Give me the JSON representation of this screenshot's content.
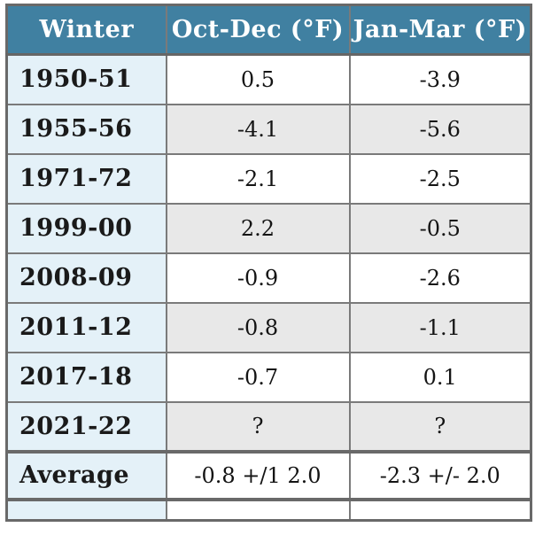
{
  "chart_data": {
    "type": "table",
    "columns": [
      "Winter",
      "Oct-Dec (°F)",
      "Jan-Mar (°F)"
    ],
    "rows": [
      [
        "1950-51",
        "0.5",
        "-3.9"
      ],
      [
        "1955-56",
        "-4.1",
        "-5.6"
      ],
      [
        "1971-72",
        "-2.1",
        "-2.5"
      ],
      [
        "1999-00",
        "2.2",
        "-0.5"
      ],
      [
        "2008-09",
        "-0.9",
        "-2.6"
      ],
      [
        "2011-12",
        "-0.8",
        "-1.1"
      ],
      [
        "2017-18",
        "-0.7",
        "0.1"
      ],
      [
        "2021-22",
        "?",
        "?"
      ],
      [
        "Average",
        "-0.8 +/1 2.0",
        "-2.3 +/- 2.0"
      ]
    ],
    "categories": [
      "1950-51",
      "1955-56",
      "1971-72",
      "1999-00",
      "2008-09",
      "2011-12",
      "2017-18",
      "2021-22"
    ],
    "series": [
      {
        "name": "Oct-Dec (°F)",
        "values": [
          0.5,
          -4.1,
          -2.1,
          2.2,
          -0.9,
          -0.8,
          -0.7,
          null
        ]
      },
      {
        "name": "Jan-Mar (°F)",
        "values": [
          -3.9,
          -5.6,
          -2.5,
          -0.5,
          -2.6,
          -1.1,
          0.1,
          null
        ]
      }
    ],
    "summary_row": {
      "label": "Average",
      "oct_dec": "-0.8 +/1 2.0",
      "jan_mar": "-2.3 +/- 2.0"
    }
  },
  "colors": {
    "header_bg": "#4080a1",
    "header_text": "#ffffff",
    "winter_column_bg": "#e4f1f8",
    "alt_row_bg": "#e8e8e8",
    "row_bg": "#ffffff",
    "inner_border": "#7a7a7a",
    "outer_border": "#696969",
    "text": "#1a1a1a"
  }
}
